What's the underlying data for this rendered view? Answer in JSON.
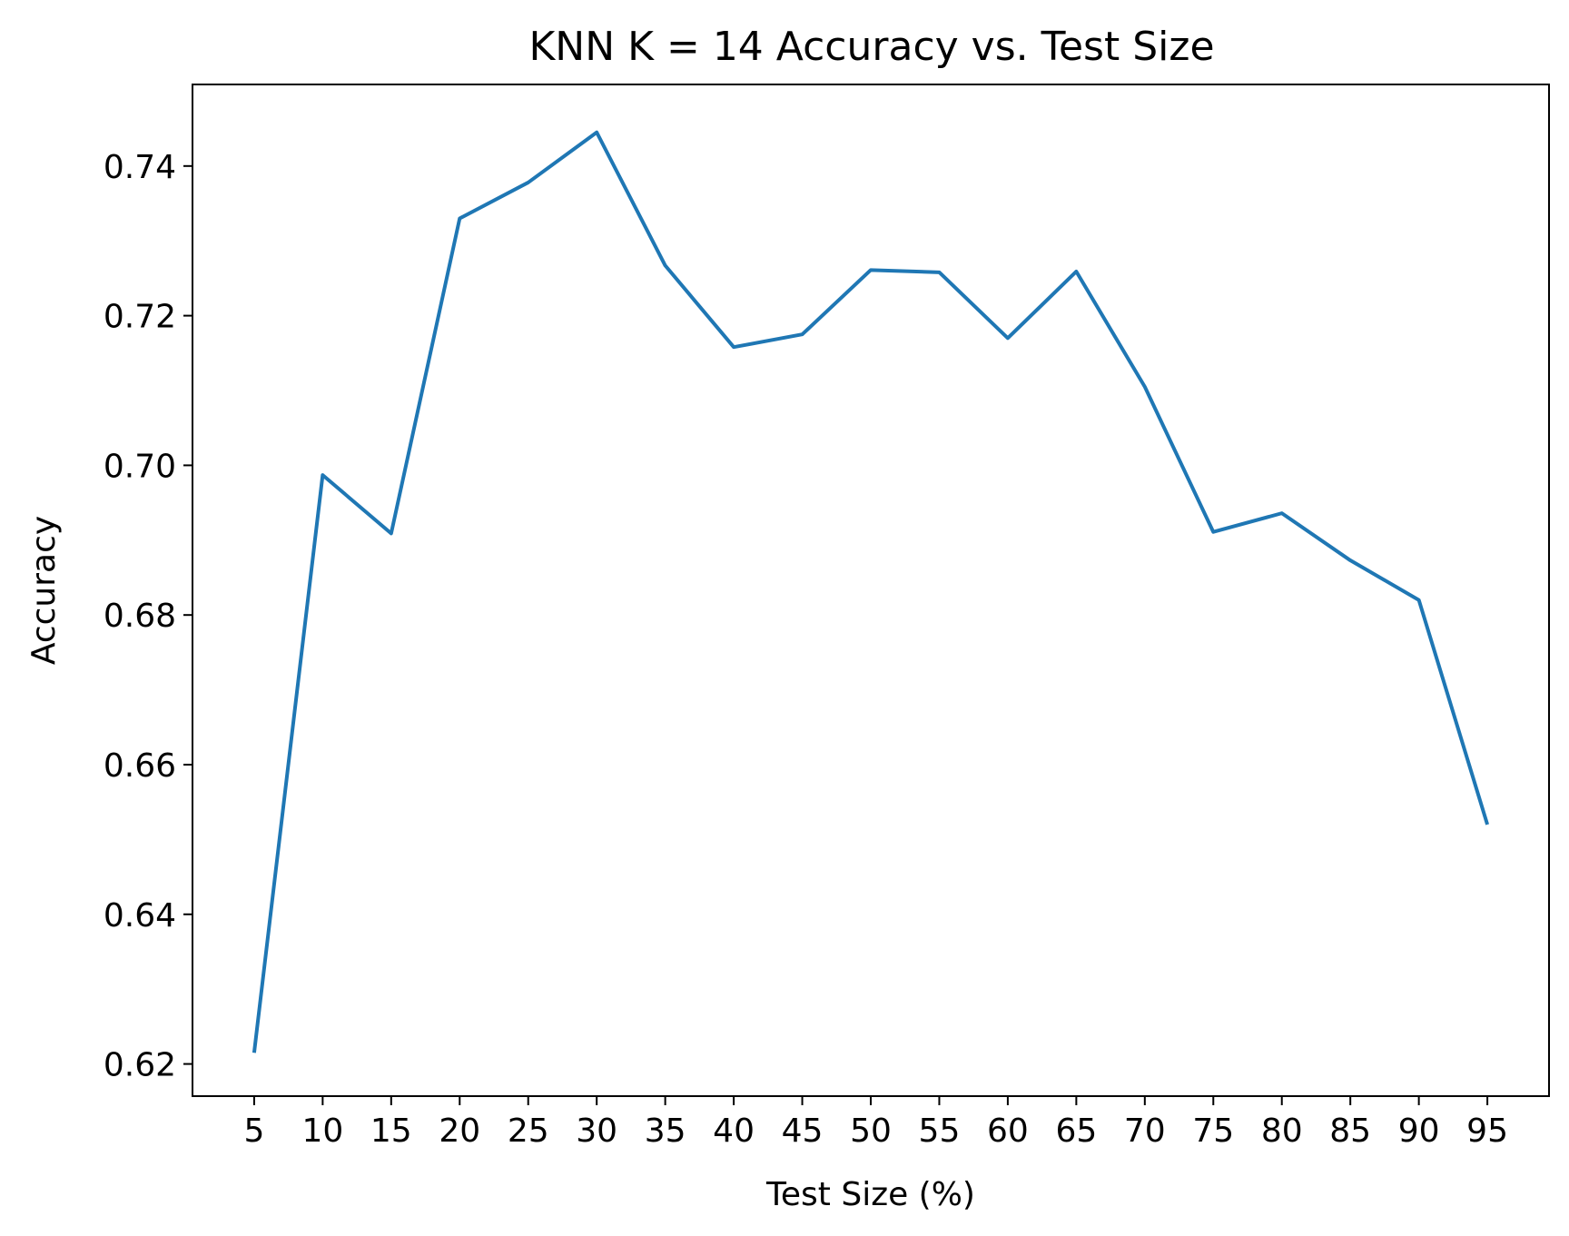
{
  "chart_data": {
    "type": "line",
    "title": "KNN K = 14 Accuracy vs. Test Size",
    "xlabel": "Test Size (%)",
    "ylabel": "Accuracy",
    "x": [
      5,
      10,
      15,
      20,
      25,
      30,
      35,
      40,
      45,
      50,
      55,
      60,
      65,
      70,
      75,
      80,
      85,
      90,
      95
    ],
    "x_tick_labels": [
      "5",
      "10",
      "15",
      "20",
      "25",
      "30",
      "35",
      "40",
      "45",
      "50",
      "55",
      "60",
      "65",
      "70",
      "75",
      "80",
      "85",
      "90",
      "95"
    ],
    "y_ticks": [
      0.62,
      0.64,
      0.66,
      0.68,
      0.7,
      0.72,
      0.74
    ],
    "y_tick_labels": [
      "0.62",
      "0.64",
      "0.66",
      "0.68",
      "0.70",
      "0.72",
      "0.74"
    ],
    "series": [
      {
        "values": [
          0.6215,
          0.6987,
          0.6909,
          0.733,
          0.7378,
          0.7445,
          0.7267,
          0.7158,
          0.7175,
          0.7261,
          0.7258,
          0.717,
          0.7259,
          0.7105,
          0.6911,
          0.6936,
          0.6873,
          0.682,
          0.652
        ],
        "color": "#1f77b4"
      }
    ],
    "xlim": [
      0.5,
      99.5
    ],
    "ylim": [
      0.6157,
      0.7509
    ],
    "grid": false,
    "legend": "none"
  }
}
